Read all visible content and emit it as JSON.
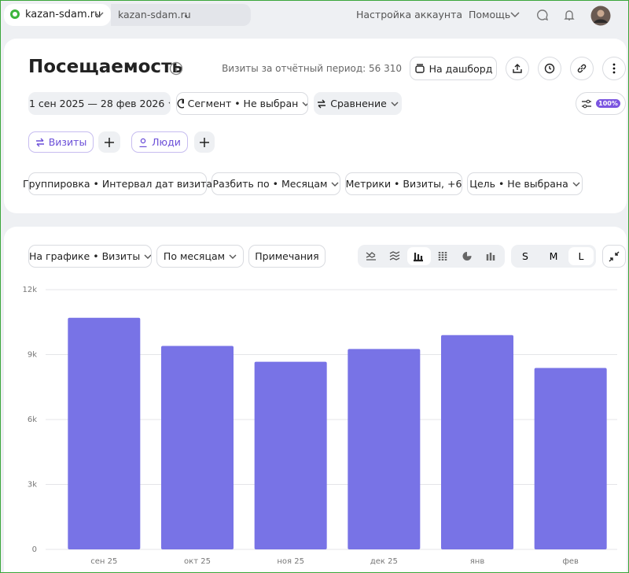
{
  "browser": {
    "tab_title": "kazan-sdam.ru",
    "tab2_title": "kazan-sdam.ru",
    "account_settings": "Настройка аккаунта",
    "help": "Помощь"
  },
  "header": {
    "title": "Посещаемость",
    "visits_label": "Визиты за отчётный период:",
    "visits_total": "56 310",
    "dashboard": "На дашборд"
  },
  "filters": {
    "date_range": "1 сен 2025 — 28 фев 2026",
    "segment": "Сегмент • Не выбран",
    "comparison": "Сравнение",
    "sampling": "100%"
  },
  "segments": [
    "Визиты",
    "Люди"
  ],
  "report_settings": [
    "Группировка • Интервал дат визита",
    "Разбить по • Месяцам",
    "Метрики • Визиты, +6",
    "Цель • Не выбрана"
  ],
  "chart_controls": {
    "metric": "На графике • Визиты",
    "period": "По месяцам",
    "notes": "Примечания",
    "sizes": [
      "S",
      "M",
      "L"
    ]
  },
  "chart_data": {
    "type": "bar",
    "categories": [
      "сен 25",
      "окт 25",
      "ноя 25",
      "дек 25",
      "янв",
      "фев"
    ],
    "values": [
      10700,
      9400,
      8670,
      9260,
      9900,
      8380
    ],
    "color": "#7873e6",
    "ylim": [
      0,
      12000
    ],
    "yticks": [
      0,
      {
        "value": 3000,
        "label": "3k"
      },
      {
        "value": 6000,
        "label": "6k"
      },
      {
        "value": 9000,
        "label": "9k"
      },
      {
        "value": 12000,
        "label": "12k"
      }
    ],
    "grid": true
  }
}
